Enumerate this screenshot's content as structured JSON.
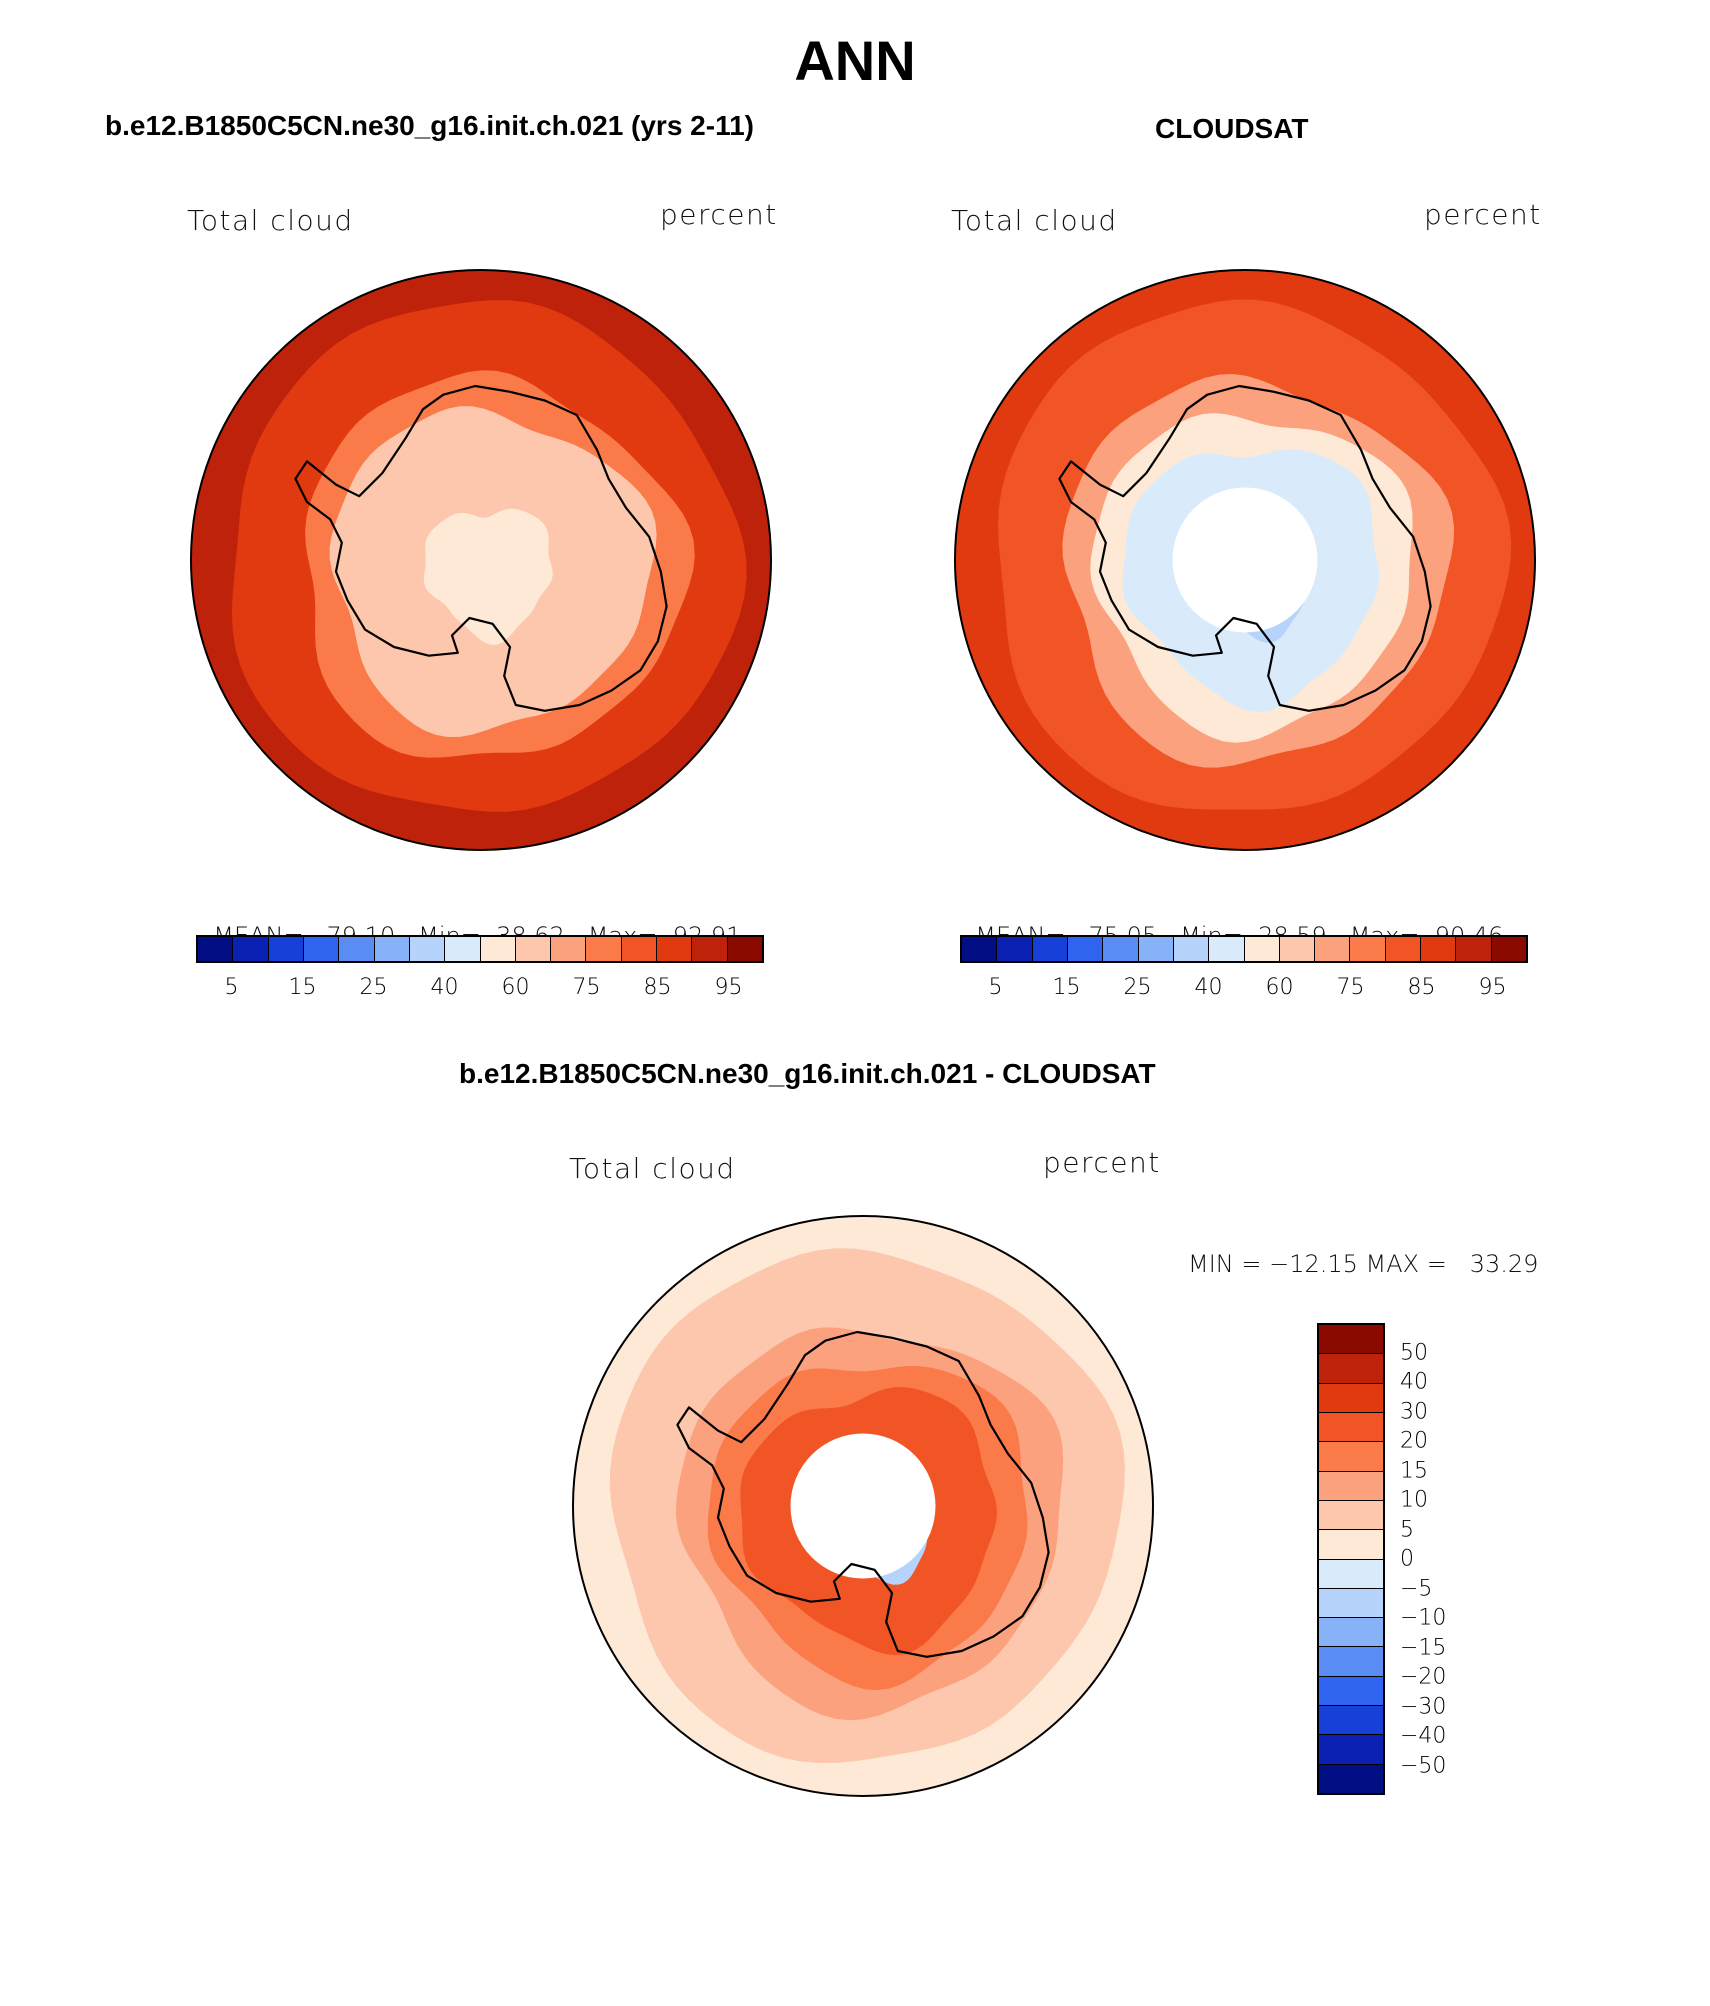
{
  "figure_title": "ANN",
  "palette": {
    "positive": [
      "#fde9d6",
      "#fcc7ac",
      "#fba17e",
      "#fa7a4a",
      "#f15425",
      "#e13a10",
      "#bf220a",
      "#8b0a00"
    ],
    "negative": [
      "#d9ebfb",
      "#b6d4fb",
      "#88b2f7",
      "#5a8df3",
      "#2f64f0",
      "#1740d8",
      "#0b21b4",
      "#010e84"
    ],
    "coastline": "#000000"
  },
  "chart_data": [
    {
      "type": "heatmap",
      "projection": "south-polar-stereographic",
      "title": "b.e12.B1850C5CN.ne30_g16.init.ch.021 (yrs 2-11)",
      "left_label": "Total cloud",
      "right_label": "percent",
      "stats": {
        "mean_label": "MEAN=",
        "mean": "79.10",
        "min_label": "Min=",
        "min": "38.62",
        "max_label": "Max=",
        "max": "92.91"
      },
      "colorbar": {
        "orientation": "horizontal",
        "ticks": [
          "5",
          "15",
          "25",
          "40",
          "60",
          "75",
          "85",
          "95"
        ],
        "levels": [
          5,
          10,
          15,
          20,
          25,
          30,
          40,
          50,
          60,
          70,
          75,
          80,
          85,
          90,
          95
        ],
        "colors": [
          "#010e84",
          "#0b21b4",
          "#1740d8",
          "#2f64f0",
          "#5a8df3",
          "#88b2f7",
          "#b6d4fb",
          "#d9ebfb",
          "#fde9d6",
          "#fcc7ac",
          "#fba17e",
          "#fa7a4a",
          "#f15425",
          "#e13a10",
          "#bf220a",
          "#8b0a00"
        ]
      },
      "field_levels": {
        "ocean_band": 90,
        "mid_ocean": 85,
        "coast": 75,
        "interior": 60,
        "plateau": 50,
        "polar_hole": false
      }
    },
    {
      "type": "heatmap",
      "projection": "south-polar-stereographic",
      "title": "CLOUDSAT",
      "left_label": "Total cloud",
      "right_label": "percent",
      "stats": {
        "mean_label": "MEAN=",
        "mean": "75.05",
        "min_label": "Min=",
        "min": "28.59",
        "max_label": "Max=",
        "max": "90.46"
      },
      "colorbar": {
        "orientation": "horizontal",
        "ticks": [
          "5",
          "15",
          "25",
          "40",
          "60",
          "75",
          "85",
          "95"
        ],
        "levels": [
          5,
          10,
          15,
          20,
          25,
          30,
          40,
          50,
          60,
          70,
          75,
          80,
          85,
          90,
          95
        ],
        "colors": [
          "#010e84",
          "#0b21b4",
          "#1740d8",
          "#2f64f0",
          "#5a8df3",
          "#88b2f7",
          "#b6d4fb",
          "#d9ebfb",
          "#fde9d6",
          "#fcc7ac",
          "#fba17e",
          "#fa7a4a",
          "#f15425",
          "#e13a10",
          "#bf220a",
          "#8b0a00"
        ]
      },
      "field_levels": {
        "ocean_band": 85,
        "mid_ocean": 80,
        "coast": 70,
        "interior": 45,
        "plateau": 30,
        "polar_hole": true
      }
    },
    {
      "type": "heatmap",
      "projection": "south-polar-stereographic",
      "title": "b.e12.B1850C5CN.ne30_g16.init.ch.021 - CLOUDSAT",
      "left_label": "Total cloud",
      "right_label": "percent",
      "stats_text": "MIN = −12.15 MAX =   33.29",
      "colorbar": {
        "orientation": "vertical",
        "ticks": [
          "50",
          "40",
          "30",
          "20",
          "15",
          "10",
          "5",
          "0",
          "−5",
          "−10",
          "−15",
          "−20",
          "−30",
          "−40",
          "−50"
        ],
        "levels": [
          50,
          40,
          30,
          20,
          15,
          10,
          5,
          0,
          -5,
          -10,
          -15,
          -20,
          -30,
          -40,
          -50
        ],
        "colors": [
          "#8b0a00",
          "#bf220a",
          "#e13a10",
          "#f15425",
          "#fa7a4a",
          "#fba17e",
          "#fcc7ac",
          "#fde9d6",
          "#d9ebfb",
          "#b6d4fb",
          "#88b2f7",
          "#5a8df3",
          "#2f64f0",
          "#1740d8",
          "#0b21b4",
          "#010e84"
        ]
      },
      "field_levels": {
        "ocean_band": 2,
        "mid_ocean": 7,
        "coast": 12,
        "interior": 25,
        "plateau": -8,
        "polar_hole": true
      }
    }
  ]
}
